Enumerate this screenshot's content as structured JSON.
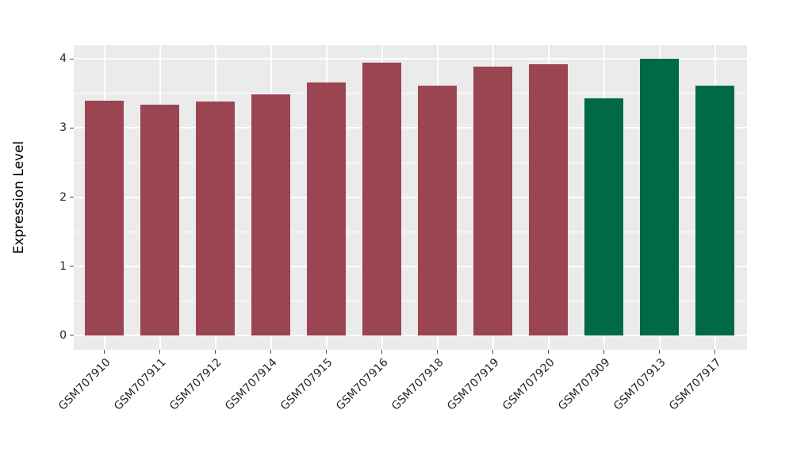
{
  "chart_data": {
    "type": "bar",
    "title": "",
    "xlabel": "",
    "ylabel": "Expression Level",
    "categories": [
      "GSM707910",
      "GSM707911",
      "GSM707912",
      "GSM707914",
      "GSM707915",
      "GSM707916",
      "GSM707918",
      "GSM707919",
      "GSM707920",
      "GSM707909",
      "GSM707913",
      "GSM707917"
    ],
    "values": [
      3.4,
      3.34,
      3.38,
      3.49,
      3.66,
      3.95,
      3.61,
      3.89,
      3.92,
      3.43,
      4.0,
      3.62
    ],
    "bar_colors": [
      "#9A4551",
      "#9A4551",
      "#9A4551",
      "#9A4551",
      "#9A4551",
      "#9A4551",
      "#9A4551",
      "#9A4551",
      "#9A4551",
      "#006946",
      "#006946",
      "#006946"
    ],
    "yticks": [
      0,
      1,
      2,
      3,
      4
    ],
    "ytick_labels": [
      "0",
      "1",
      "2",
      "3",
      "4"
    ],
    "ylim": [
      -0.21,
      4.2
    ],
    "minor_grid_step": 0.5,
    "legend": "none",
    "grid_on": true,
    "style": {
      "panel_bg": "#EBEBEB",
      "major_grid_color": "#FFFFFF",
      "minor_grid_color": "#FFFFFF",
      "axis_text_color": "#262626",
      "tick_mark_color": "#4D4D4D",
      "background": "#FFFFFF"
    }
  }
}
